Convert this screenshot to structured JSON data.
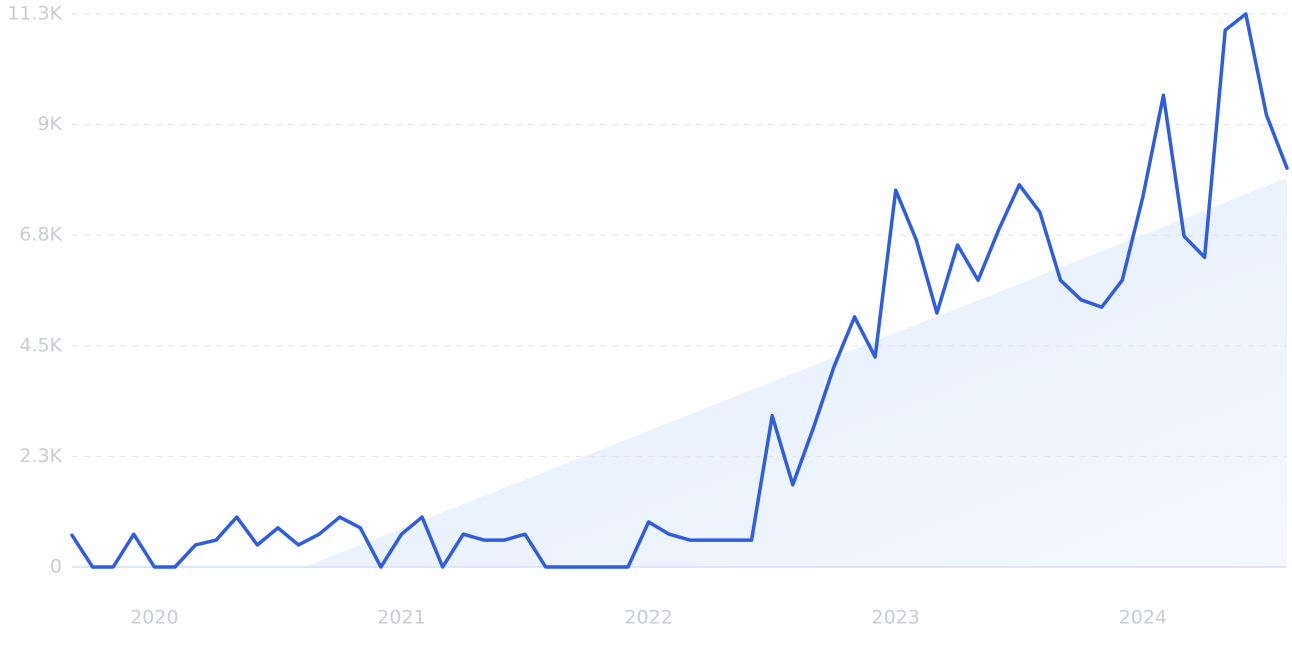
{
  "chart_data": {
    "type": "line",
    "categories": [
      null,
      null,
      null,
      null,
      "2020",
      null,
      null,
      null,
      null,
      null,
      null,
      null,
      null,
      null,
      null,
      null,
      "2021",
      null,
      null,
      null,
      null,
      null,
      null,
      null,
      null,
      null,
      null,
      null,
      "2022",
      null,
      null,
      null,
      null,
      null,
      null,
      null,
      null,
      null,
      null,
      null,
      "2023",
      null,
      null,
      null,
      null,
      null,
      null,
      null,
      null,
      null,
      null,
      null,
      "2024",
      null,
      null,
      null,
      null,
      null,
      null,
      null
    ],
    "series": [
      {
        "color": "#2f5de0",
        "values": [
          650,
          0,
          0,
          670,
          0,
          0,
          450,
          550,
          1020,
          450,
          800,
          450,
          670,
          1020,
          800,
          0,
          670,
          1020,
          0,
          670,
          550,
          550,
          670,
          0,
          0,
          0,
          0,
          0,
          920,
          670,
          550,
          550,
          550,
          550,
          3090,
          1680,
          2840,
          4090,
          5110,
          4290,
          7700,
          6680,
          5190,
          6580,
          5860,
          6890,
          7810,
          7250,
          5860,
          5460,
          5310,
          5860,
          7560,
          9640,
          6760,
          6330,
          10970,
          11300,
          9240,
          8150
        ]
      }
    ],
    "trend": {
      "color": "#e6f0fd",
      "values": [
        -1880,
        7950
      ]
    },
    "ylim": [
      0,
      11300
    ],
    "yticks": [
      0,
      {
        "value": 2260,
        "label": "2.3K"
      },
      {
        "value": 4520,
        "label": "4.5K"
      },
      {
        "value": 6780,
        "label": "6.8K"
      },
      {
        "value": 9040,
        "label": "9K"
      },
      {
        "value": 11300,
        "label": "11.3K"
      }
    ],
    "grid": true
  }
}
